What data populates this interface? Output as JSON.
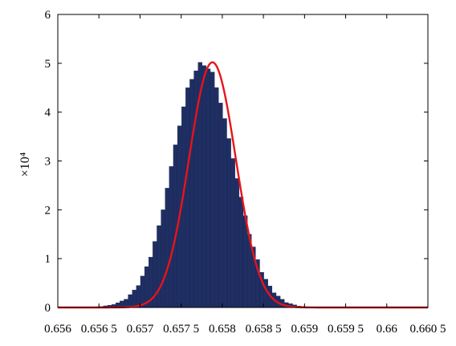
{
  "chart_data": {
    "type": "bar",
    "title": "",
    "xlabel": "",
    "ylabel": "",
    "y_exponent_label": "×10⁴",
    "xlim": [
      0.656,
      0.6605
    ],
    "ylim": [
      0,
      6
    ],
    "x_ticks": [
      0.656,
      0.6565,
      0.657,
      0.6575,
      0.658,
      0.6585,
      0.659,
      0.6595,
      0.66,
      0.6605
    ],
    "x_tick_labels": [
      "0.656",
      "0.656 5",
      "0.657",
      "0.657 5",
      "0.658",
      "0.658 5",
      "0.659",
      "0.659 5",
      "0.66",
      "0.660 5"
    ],
    "y_ticks": [
      0,
      1,
      2,
      3,
      4,
      5,
      6
    ],
    "y_tick_labels": [
      "0",
      "1",
      "2",
      "3",
      "4",
      "5",
      "6"
    ],
    "grid": false,
    "legend": "none",
    "colors": {
      "bars": "#1f2f63",
      "fit_line": "#e8131b",
      "axes": "#000000"
    },
    "series": [
      {
        "kind": "histogram",
        "bin_width": 5e-05,
        "x": [
          0.65623,
          0.65638,
          0.65653,
          0.65668,
          0.65683,
          0.65698,
          0.65713,
          0.65728,
          0.65743,
          0.65758,
          0.65773,
          0.65788,
          0.65803,
          0.65818,
          0.65833,
          0.65848,
          0.65863,
          0.65878,
          0.65893,
          0.65908,
          0.65923,
          0.65938,
          0.65953,
          0.65968
        ],
        "values": [
          0.002,
          0.008,
          0.02,
          0.06,
          0.17,
          0.45,
          1.03,
          2.0,
          3.33,
          4.5,
          5.02,
          4.82,
          3.87,
          2.64,
          1.5,
          0.72,
          0.3,
          0.1,
          0.03,
          0.01,
          0.004,
          0.002,
          0.001,
          0.0005
        ]
      },
      {
        "kind": "fit-curve",
        "mean": 0.65788,
        "sd": 0.000285,
        "peak": 5.02
      }
    ]
  }
}
